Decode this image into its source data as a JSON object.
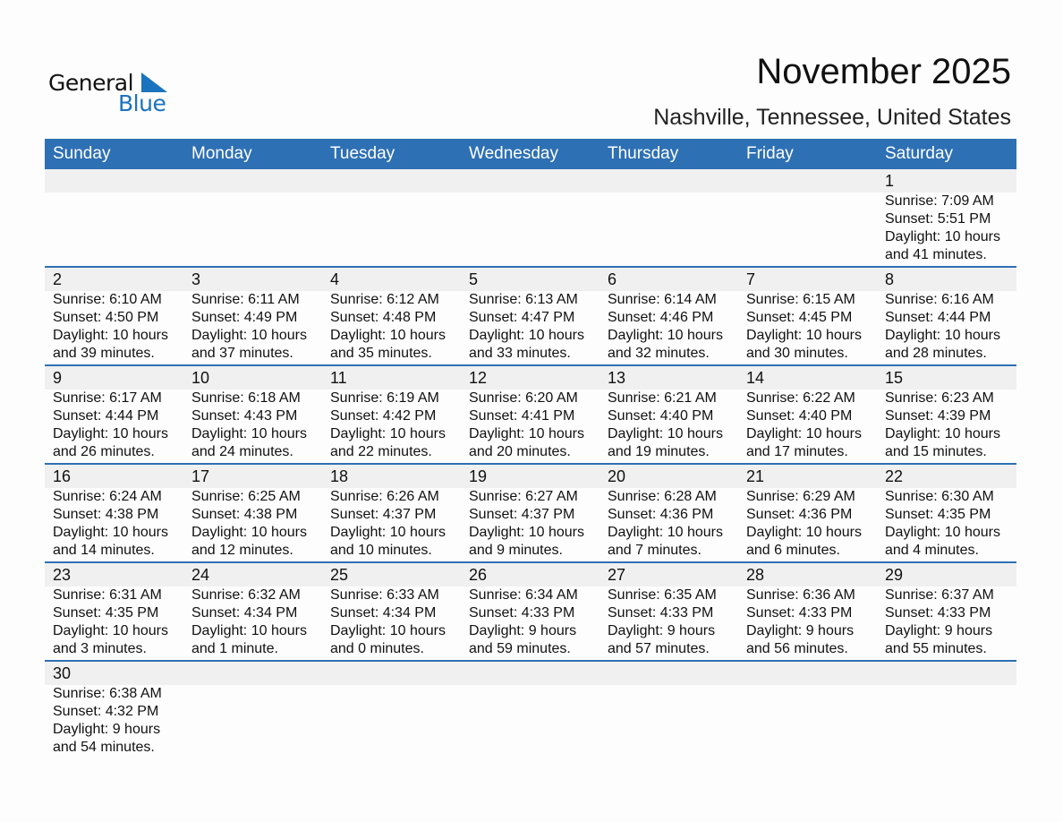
{
  "logo": {
    "text1": "General",
    "text2": "Blue",
    "accent": "#1a73be"
  },
  "title": "November 2025",
  "subtitle": "Nashville, Tennessee, United States",
  "colors": {
    "header_bg": "#2e70b4",
    "strip_bg": "#f0f0f0"
  },
  "weekdays": [
    "Sunday",
    "Monday",
    "Tuesday",
    "Wednesday",
    "Thursday",
    "Friday",
    "Saturday"
  ],
  "weeks": [
    [
      null,
      null,
      null,
      null,
      null,
      null,
      {
        "day": "1",
        "sunrise": "Sunrise: 7:09 AM",
        "sunset": "Sunset: 5:51 PM",
        "daylight": "Daylight: 10 hours",
        "minutes": "and 41 minutes."
      }
    ],
    [
      {
        "day": "2",
        "sunrise": "Sunrise: 6:10 AM",
        "sunset": "Sunset: 4:50 PM",
        "daylight": "Daylight: 10 hours",
        "minutes": "and 39 minutes."
      },
      {
        "day": "3",
        "sunrise": "Sunrise: 6:11 AM",
        "sunset": "Sunset: 4:49 PM",
        "daylight": "Daylight: 10 hours",
        "minutes": "and 37 minutes."
      },
      {
        "day": "4",
        "sunrise": "Sunrise: 6:12 AM",
        "sunset": "Sunset: 4:48 PM",
        "daylight": "Daylight: 10 hours",
        "minutes": "and 35 minutes."
      },
      {
        "day": "5",
        "sunrise": "Sunrise: 6:13 AM",
        "sunset": "Sunset: 4:47 PM",
        "daylight": "Daylight: 10 hours",
        "minutes": "and 33 minutes."
      },
      {
        "day": "6",
        "sunrise": "Sunrise: 6:14 AM",
        "sunset": "Sunset: 4:46 PM",
        "daylight": "Daylight: 10 hours",
        "minutes": "and 32 minutes."
      },
      {
        "day": "7",
        "sunrise": "Sunrise: 6:15 AM",
        "sunset": "Sunset: 4:45 PM",
        "daylight": "Daylight: 10 hours",
        "minutes": "and 30 minutes."
      },
      {
        "day": "8",
        "sunrise": "Sunrise: 6:16 AM",
        "sunset": "Sunset: 4:44 PM",
        "daylight": "Daylight: 10 hours",
        "minutes": "and 28 minutes."
      }
    ],
    [
      {
        "day": "9",
        "sunrise": "Sunrise: 6:17 AM",
        "sunset": "Sunset: 4:44 PM",
        "daylight": "Daylight: 10 hours",
        "minutes": "and 26 minutes."
      },
      {
        "day": "10",
        "sunrise": "Sunrise: 6:18 AM",
        "sunset": "Sunset: 4:43 PM",
        "daylight": "Daylight: 10 hours",
        "minutes": "and 24 minutes."
      },
      {
        "day": "11",
        "sunrise": "Sunrise: 6:19 AM",
        "sunset": "Sunset: 4:42 PM",
        "daylight": "Daylight: 10 hours",
        "minutes": "and 22 minutes."
      },
      {
        "day": "12",
        "sunrise": "Sunrise: 6:20 AM",
        "sunset": "Sunset: 4:41 PM",
        "daylight": "Daylight: 10 hours",
        "minutes": "and 20 minutes."
      },
      {
        "day": "13",
        "sunrise": "Sunrise: 6:21 AM",
        "sunset": "Sunset: 4:40 PM",
        "daylight": "Daylight: 10 hours",
        "minutes": "and 19 minutes."
      },
      {
        "day": "14",
        "sunrise": "Sunrise: 6:22 AM",
        "sunset": "Sunset: 4:40 PM",
        "daylight": "Daylight: 10 hours",
        "minutes": "and 17 minutes."
      },
      {
        "day": "15",
        "sunrise": "Sunrise: 6:23 AM",
        "sunset": "Sunset: 4:39 PM",
        "daylight": "Daylight: 10 hours",
        "minutes": "and 15 minutes."
      }
    ],
    [
      {
        "day": "16",
        "sunrise": "Sunrise: 6:24 AM",
        "sunset": "Sunset: 4:38 PM",
        "daylight": "Daylight: 10 hours",
        "minutes": "and 14 minutes."
      },
      {
        "day": "17",
        "sunrise": "Sunrise: 6:25 AM",
        "sunset": "Sunset: 4:38 PM",
        "daylight": "Daylight: 10 hours",
        "minutes": "and 12 minutes."
      },
      {
        "day": "18",
        "sunrise": "Sunrise: 6:26 AM",
        "sunset": "Sunset: 4:37 PM",
        "daylight": "Daylight: 10 hours",
        "minutes": "and 10 minutes."
      },
      {
        "day": "19",
        "sunrise": "Sunrise: 6:27 AM",
        "sunset": "Sunset: 4:37 PM",
        "daylight": "Daylight: 10 hours",
        "minutes": "and 9 minutes."
      },
      {
        "day": "20",
        "sunrise": "Sunrise: 6:28 AM",
        "sunset": "Sunset: 4:36 PM",
        "daylight": "Daylight: 10 hours",
        "minutes": "and 7 minutes."
      },
      {
        "day": "21",
        "sunrise": "Sunrise: 6:29 AM",
        "sunset": "Sunset: 4:36 PM",
        "daylight": "Daylight: 10 hours",
        "minutes": "and 6 minutes."
      },
      {
        "day": "22",
        "sunrise": "Sunrise: 6:30 AM",
        "sunset": "Sunset: 4:35 PM",
        "daylight": "Daylight: 10 hours",
        "minutes": "and 4 minutes."
      }
    ],
    [
      {
        "day": "23",
        "sunrise": "Sunrise: 6:31 AM",
        "sunset": "Sunset: 4:35 PM",
        "daylight": "Daylight: 10 hours",
        "minutes": "and 3 minutes."
      },
      {
        "day": "24",
        "sunrise": "Sunrise: 6:32 AM",
        "sunset": "Sunset: 4:34 PM",
        "daylight": "Daylight: 10 hours",
        "minutes": "and 1 minute."
      },
      {
        "day": "25",
        "sunrise": "Sunrise: 6:33 AM",
        "sunset": "Sunset: 4:34 PM",
        "daylight": "Daylight: 10 hours",
        "minutes": "and 0 minutes."
      },
      {
        "day": "26",
        "sunrise": "Sunrise: 6:34 AM",
        "sunset": "Sunset: 4:33 PM",
        "daylight": "Daylight: 9 hours",
        "minutes": "and 59 minutes."
      },
      {
        "day": "27",
        "sunrise": "Sunrise: 6:35 AM",
        "sunset": "Sunset: 4:33 PM",
        "daylight": "Daylight: 9 hours",
        "minutes": "and 57 minutes."
      },
      {
        "day": "28",
        "sunrise": "Sunrise: 6:36 AM",
        "sunset": "Sunset: 4:33 PM",
        "daylight": "Daylight: 9 hours",
        "minutes": "and 56 minutes."
      },
      {
        "day": "29",
        "sunrise": "Sunrise: 6:37 AM",
        "sunset": "Sunset: 4:33 PM",
        "daylight": "Daylight: 9 hours",
        "minutes": "and 55 minutes."
      }
    ],
    [
      {
        "day": "30",
        "sunrise": "Sunrise: 6:38 AM",
        "sunset": "Sunset: 4:32 PM",
        "daylight": "Daylight: 9 hours",
        "minutes": "and 54 minutes."
      },
      null,
      null,
      null,
      null,
      null,
      null
    ]
  ]
}
